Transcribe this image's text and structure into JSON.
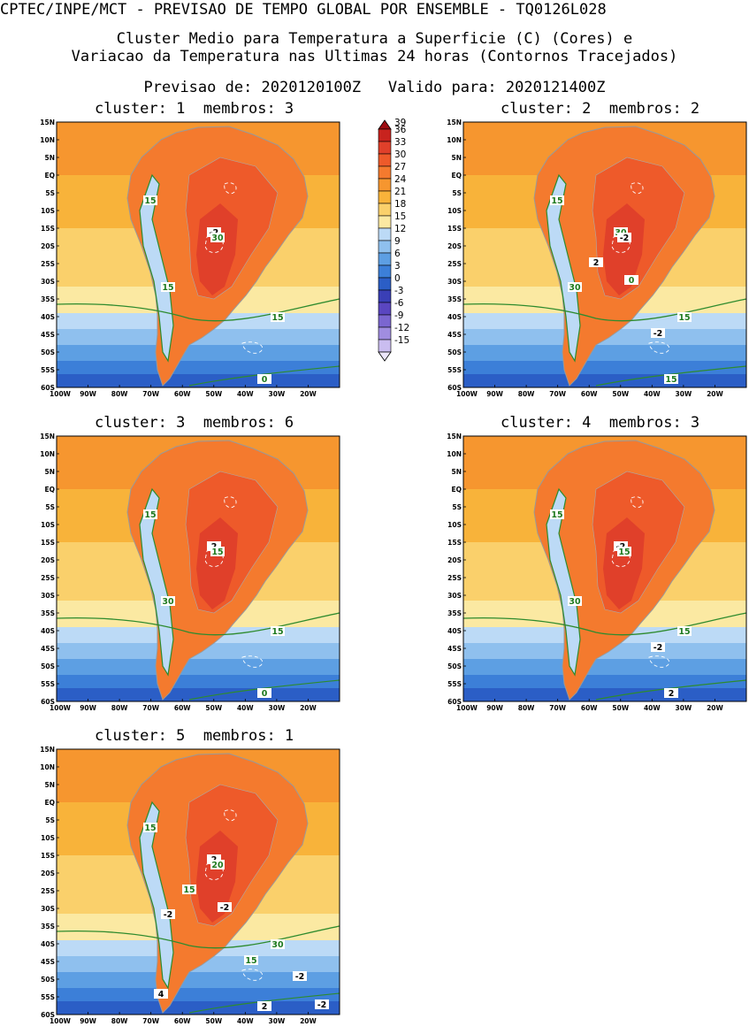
{
  "header": {
    "line1": "CPTEC/INPE/MCT - PREVISAO DE TEMPO GLOBAL POR ENSEMBLE - TQ0126L028",
    "line2": "Cluster Medio para Temperatura a Superficie (C) (Cores) e",
    "line3": "Variacao da Temperatura nas Ultimas 24 horas (Contornos Tracejados)",
    "line4": "Previsao de: 2020120100Z   Valido para: 2020121400Z"
  },
  "lat_labels": [
    "15N",
    "10N",
    "5N",
    "EQ",
    "5S",
    "10S",
    "15S",
    "20S",
    "25S",
    "30S",
    "35S",
    "40S",
    "45S",
    "50S",
    "55S",
    "60S"
  ],
  "lon_labels": [
    "100W",
    "90W",
    "80W",
    "70W",
    "60W",
    "50W",
    "40W",
    "30W",
    "20W"
  ],
  "colorbar": {
    "levels": [
      "39",
      "36",
      "33",
      "30",
      "27",
      "24",
      "21",
      "18",
      "15",
      "12",
      "9",
      "6",
      "3",
      "0",
      "-3",
      "-6",
      "-9",
      "-12",
      "-15"
    ],
    "colors": [
      "#9e0d12",
      "#c8231e",
      "#e0402a",
      "#ee5a2a",
      "#f47a2e",
      "#f6962f",
      "#f8b33a",
      "#fad06b",
      "#fbe9a2",
      "#bcdaf6",
      "#8fc0ee",
      "#5d9fe3",
      "#3c7fd8",
      "#2b5ec6",
      "#3a3fb6",
      "#5a46c0",
      "#7b66d0",
      "#a08de0",
      "#cabdf0",
      "#ece6fb"
    ]
  },
  "panels": [
    {
      "title": "cluster: 1  membros: 3",
      "labels": [
        "15",
        "15",
        "15",
        "-2",
        "30",
        "0"
      ]
    },
    {
      "title": "cluster: 2  membros: 2",
      "labels": [
        "15",
        "30",
        "15",
        "30",
        "-2",
        "15",
        "-2",
        "2",
        "0"
      ]
    },
    {
      "title": "cluster: 3  membros: 6",
      "labels": [
        "15",
        "30",
        "15",
        "2",
        "15",
        "0"
      ]
    },
    {
      "title": "cluster: 4  membros: 3",
      "labels": [
        "15",
        "30",
        "15",
        "-2",
        "15",
        "2",
        "-2"
      ]
    },
    {
      "title": "cluster: 5  membros: 1",
      "labels": [
        "15",
        "-2",
        "30",
        "2",
        "20",
        "2",
        "15",
        "15",
        "-2",
        "-2",
        "4",
        "-2"
      ]
    }
  ]
}
